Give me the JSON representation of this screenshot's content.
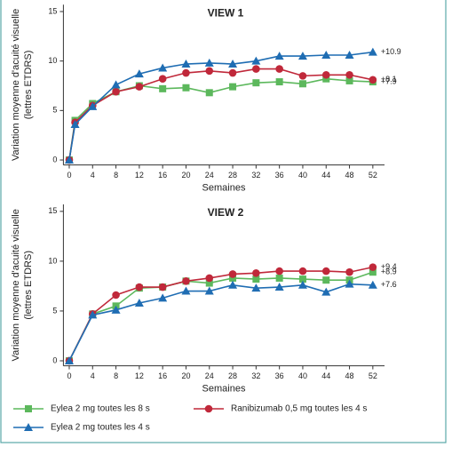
{
  "chart_data": [
    {
      "type": "line",
      "title": "VIEW 1",
      "y_label": [
        "Variation moyenne d'acuité visuelle",
        "(lettres ETDRS)"
      ],
      "x_label": "Semaines",
      "x": [
        0,
        1,
        4,
        8,
        12,
        16,
        20,
        24,
        28,
        32,
        36,
        40,
        44,
        48,
        52
      ],
      "xlim": [
        -1,
        54
      ],
      "xticks": [
        0,
        4,
        8,
        12,
        16,
        20,
        24,
        28,
        32,
        36,
        40,
        44,
        48,
        52
      ],
      "ylim": [
        -0.5,
        15.7
      ],
      "yticks": [
        0,
        5,
        10,
        15
      ],
      "series": [
        {
          "name": "Eylea 2 mg toutes les 8 s",
          "color": "#5cb85c",
          "marker": "square",
          "values": [
            0,
            4.0,
            5.7,
            6.9,
            7.5,
            7.2,
            7.3,
            6.8,
            7.4,
            7.8,
            7.9,
            7.7,
            8.2,
            8.0,
            7.9
          ],
          "value_labels": [
            null,
            null,
            null,
            null,
            null,
            null,
            null,
            null,
            null,
            null,
            null,
            null,
            null,
            null,
            "+7.9"
          ]
        },
        {
          "name": "Ranibizumab 0,5 mg toutes les 4 s",
          "color": "#c0283a",
          "marker": "circle",
          "values": [
            0,
            3.8,
            5.5,
            6.9,
            7.4,
            8.2,
            8.8,
            9.0,
            8.8,
            9.2,
            9.2,
            8.5,
            8.6,
            8.6,
            8.1
          ],
          "value_labels": [
            null,
            null,
            null,
            null,
            null,
            null,
            null,
            null,
            null,
            null,
            null,
            null,
            null,
            null,
            "+8.1"
          ]
        },
        {
          "name": "Eylea 2 mg toutes les 4 s",
          "color": "#1f6db3",
          "marker": "triangle",
          "values": [
            0,
            3.6,
            5.4,
            7.6,
            8.7,
            9.3,
            9.7,
            9.8,
            9.7,
            10.0,
            10.5,
            10.5,
            10.6,
            10.6,
            10.9
          ],
          "value_labels": [
            null,
            null,
            null,
            null,
            null,
            null,
            null,
            null,
            null,
            null,
            null,
            null,
            null,
            null,
            "+10.9"
          ]
        }
      ]
    },
    {
      "type": "line",
      "title": "VIEW 2",
      "y_label": [
        "Variation moyenne d'acuité visuelle",
        "(lettres ETDRS)"
      ],
      "x_label": "Semaines",
      "x": [
        0,
        4,
        8,
        12,
        16,
        20,
        24,
        28,
        32,
        36,
        40,
        44,
        48,
        52
      ],
      "xlim": [
        -1,
        54
      ],
      "xticks": [
        0,
        4,
        8,
        12,
        16,
        20,
        24,
        28,
        32,
        36,
        40,
        44,
        48,
        52
      ],
      "ylim": [
        -0.5,
        15.7
      ],
      "yticks": [
        0,
        5,
        10,
        15
      ],
      "series": [
        {
          "name": "Eylea 2 mg toutes les 8 s",
          "color": "#5cb85c",
          "marker": "square",
          "values": [
            0,
            4.7,
            5.5,
            7.3,
            7.4,
            8.0,
            7.8,
            8.3,
            8.2,
            8.3,
            8.2,
            8.1,
            8.1,
            8.9
          ],
          "value_labels": [
            null,
            null,
            null,
            null,
            null,
            null,
            null,
            null,
            null,
            null,
            null,
            null,
            null,
            "+8.9"
          ]
        },
        {
          "name": "Ranibizumab 0,5 mg toutes les 4 s",
          "color": "#c0283a",
          "marker": "circle",
          "values": [
            0,
            4.7,
            6.6,
            7.4,
            7.4,
            8.0,
            8.3,
            8.7,
            8.8,
            9.0,
            9.0,
            9.0,
            8.9,
            9.4
          ],
          "value_labels": [
            null,
            null,
            null,
            null,
            null,
            null,
            null,
            null,
            null,
            null,
            null,
            null,
            null,
            "+9.4"
          ]
        },
        {
          "name": "Eylea 2 mg toutes les 4 s",
          "color": "#1f6db3",
          "marker": "triangle",
          "values": [
            0,
            4.6,
            5.1,
            5.8,
            6.3,
            7.0,
            7.0,
            7.6,
            7.3,
            7.4,
            7.6,
            6.9,
            7.7,
            7.6
          ],
          "value_labels": [
            null,
            null,
            null,
            null,
            null,
            null,
            null,
            null,
            null,
            null,
            null,
            null,
            null,
            "+7.6"
          ]
        }
      ]
    }
  ]
}
